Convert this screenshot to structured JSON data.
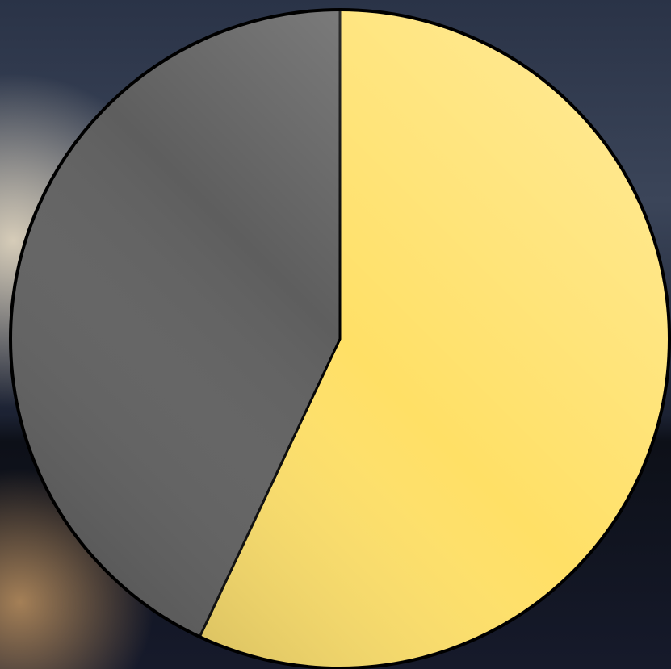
{
  "chart_data": {
    "type": "pie",
    "values": [
      57,
      43
    ],
    "colors": [
      "#ffe066",
      "#5e5e5e"
    ],
    "start_angle": 0,
    "direction": "clockwise"
  }
}
